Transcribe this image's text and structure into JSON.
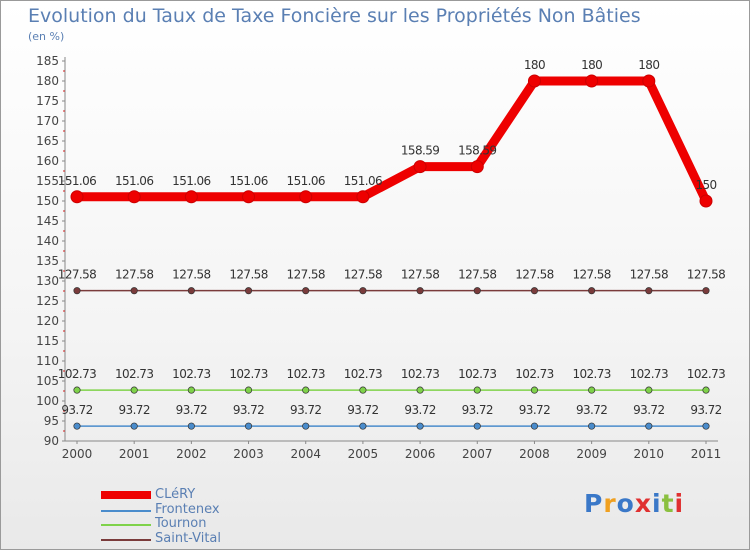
{
  "title": "Evolution du Taux de Taxe Foncière sur les Propriétés Non Bâties",
  "unit": "(en %)",
  "logo": "Proxiti",
  "chart_data": {
    "type": "line",
    "categories": [
      "2000",
      "2001",
      "2002",
      "2003",
      "2004",
      "2005",
      "2006",
      "2007",
      "2008",
      "2009",
      "2010",
      "2011"
    ],
    "ylim": [
      90,
      185
    ],
    "yticks": [
      90,
      95,
      100,
      105,
      110,
      115,
      120,
      125,
      130,
      135,
      140,
      145,
      150,
      155,
      160,
      165,
      170,
      175,
      180,
      185
    ],
    "grid": false,
    "legend_position": "bottom-left",
    "series": [
      {
        "name": "CLéRY",
        "color": "#ee0000",
        "values": [
          151.06,
          151.06,
          151.06,
          151.06,
          151.06,
          151.06,
          158.59,
          158.59,
          180,
          180,
          180,
          150
        ],
        "labels": [
          "151.06",
          "151.06",
          "151.06",
          "151.06",
          "151.06",
          "151.06",
          "158.59",
          "158.59",
          "180",
          "180",
          "180",
          "150"
        ]
      },
      {
        "name": "Frontenex",
        "color": "#4a8ccc",
        "values": [
          93.72,
          93.72,
          93.72,
          93.72,
          93.72,
          93.72,
          93.72,
          93.72,
          93.72,
          93.72,
          93.72,
          93.72
        ],
        "labels": [
          "93.72",
          "93.72",
          "93.72",
          "93.72",
          "93.72",
          "93.72",
          "93.72",
          "93.72",
          "93.72",
          "93.72",
          "93.72",
          "93.72"
        ]
      },
      {
        "name": "Tournon",
        "color": "#7fd24a",
        "values": [
          102.73,
          102.73,
          102.73,
          102.73,
          102.73,
          102.73,
          102.73,
          102.73,
          102.73,
          102.73,
          102.73,
          102.73
        ],
        "labels": [
          "102.73",
          "102.73",
          "102.73",
          "102.73",
          "102.73",
          "102.73",
          "102.73",
          "102.73",
          "102.73",
          "102.73",
          "102.73",
          "102.73"
        ]
      },
      {
        "name": "Saint-Vital",
        "color": "#7a3b3b",
        "values": [
          127.58,
          127.58,
          127.58,
          127.58,
          127.58,
          127.58,
          127.58,
          127.58,
          127.58,
          127.58,
          127.58,
          127.58
        ],
        "labels": [
          "127.58",
          "127.58",
          "127.58",
          "127.58",
          "127.58",
          "127.58",
          "127.58",
          "127.58",
          "127.58",
          "127.58",
          "127.58",
          "127.58"
        ]
      }
    ]
  }
}
